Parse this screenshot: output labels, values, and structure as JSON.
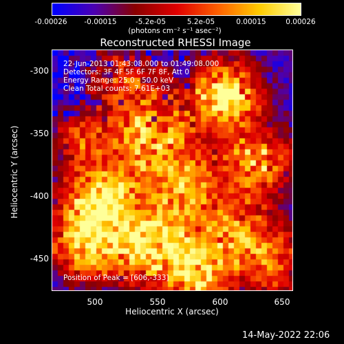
{
  "colorbar": {
    "ticks": [
      "-0.00026",
      "-0.00015",
      "-5.2e-05",
      "5.2e-05",
      "0.00015",
      "0.00026"
    ],
    "unit_text": "(photons cm⁻² s⁻¹ asec⁻²)",
    "colors": [
      "#0000ff",
      "#4b00b4",
      "#8b0000",
      "#e00000",
      "#ff6000",
      "#ffcc00",
      "#ffff99"
    ]
  },
  "image": {
    "title": "Reconstructed RHESSI Image",
    "time_range": "22-Jun-2013 01:43:08.000 to 01:49:08.000",
    "detectors": "Detectors: 3F 4F 5F 6F 7F 8F, Att 0",
    "energy_range": "Energy Range: 25.0 - 50.0 keV",
    "method_counts": "Clean     Total counts: 7.61E+03",
    "peak": "Position of Peak = [606,-333]"
  },
  "axes": {
    "xlabel": "Heliocentric X (arcsec)",
    "ylabel": "Heliocentric Y (arcsec)",
    "x_ticks": [
      "500",
      "550",
      "600",
      "650"
    ],
    "y_ticks": [
      "-300",
      "-350",
      "-400",
      "-450"
    ],
    "xlim": [
      465,
      660
    ],
    "ylim": [
      -475,
      -280
    ]
  },
  "footer": {
    "timestamp": "14-May-2022 22:06"
  }
}
